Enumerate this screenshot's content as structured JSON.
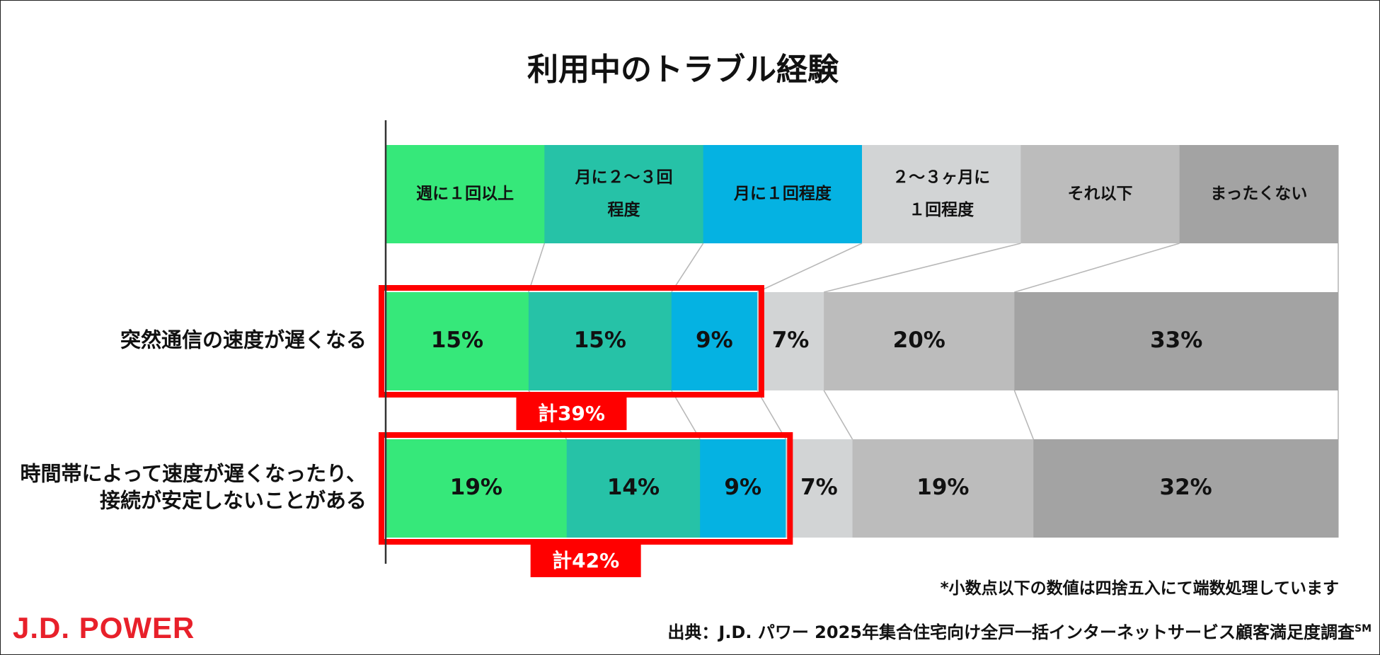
{
  "chart_data": {
    "type": "bar",
    "subtype": "stacked-100-horizontal",
    "title": "利用中のトラブル経験",
    "legend": [
      {
        "label": "週に１回以上",
        "color": "#36e87a"
      },
      {
        "label": "月に２～３回程度",
        "color": "#26c2a7"
      },
      {
        "label": "月に１回程度",
        "color": "#05b2e2"
      },
      {
        "label": "２～３ヶ月に１回程度",
        "color": "#d2d4d5"
      },
      {
        "label": "それ以下",
        "color": "#bcbcbc"
      },
      {
        "label": "まったくない",
        "color": "#a3a3a3"
      }
    ],
    "categories": [
      "突然通信の速度が遅くなる",
      "時間帯によって速度が遅くなったり、接続が安定しないことがある"
    ],
    "category_lines": [
      [
        "突然通信の速度が遅くなる"
      ],
      [
        "時間帯によって速度が遅くなったり、",
        "接続が安定しないことがある"
      ]
    ],
    "series": [
      {
        "name": "週に１回以上",
        "values": [
          15,
          19
        ],
        "labels": [
          "15%",
          "19%"
        ]
      },
      {
        "name": "月に２～３回程度",
        "values": [
          15,
          14
        ],
        "labels": [
          "15%",
          "14%"
        ]
      },
      {
        "name": "月に１回程度",
        "values": [
          9,
          9
        ],
        "labels": [
          "9%",
          "9%"
        ]
      },
      {
        "name": "２～３ヶ月に１回程度",
        "values": [
          7,
          7
        ],
        "labels": [
          "7%",
          "7%"
        ]
      },
      {
        "name": "それ以下",
        "values": [
          20,
          19
        ],
        "labels": [
          "20%",
          "19%"
        ]
      },
      {
        "name": "まったくない",
        "values": [
          33,
          32
        ],
        "labels": [
          "33%",
          "32%"
        ]
      }
    ],
    "totals": [
      "計39%",
      "計42%"
    ],
    "highlight_color": "#ff0000",
    "xlim": [
      0,
      100
    ]
  },
  "legend_lines": [
    [
      "週に１回以上"
    ],
    [
      "月に２～３回",
      "程度"
    ],
    [
      "月に１回程度"
    ],
    [
      "２～３ヶ月に",
      "１回程度"
    ],
    [
      "それ以下"
    ],
    [
      "まったくない"
    ]
  ],
  "note": "*小数点以下の数値は四捨五入にて端数処理しています",
  "source": "出典：J.D. パワー 2025年集合住宅向け全戸一括インターネットサービス顧客満足度調査",
  "source_mark": "SM",
  "logo": "J.D. POWER"
}
